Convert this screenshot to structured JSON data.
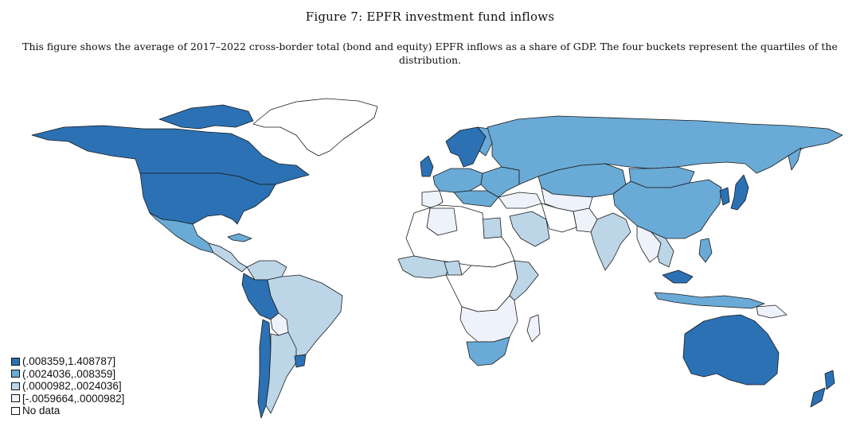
{
  "figure": {
    "title": "Figure 7: EPFR investment fund inflows",
    "caption": "This figure shows the average of 2017–2022 cross-border total (bond and equity) EPFR inflows as a share of GDP. The four buckets represent the quartiles of the distribution."
  },
  "colors": {
    "q4": "#2b71b4",
    "q3": "#6aaad6",
    "q2": "#bcd6e8",
    "q1": "#eef2fb",
    "no_data": "#ffffff",
    "border": "#1a1a1a"
  },
  "legend": {
    "items": [
      {
        "label": "(.008359,1.408787]",
        "color": "#2b71b4"
      },
      {
        "label": "(.0024036,.008359]",
        "color": "#6aaad6"
      },
      {
        "label": "(.0000982,.0024036]",
        "color": "#bcd6e8"
      },
      {
        "label": "[-.0059664,.0000982]",
        "color": "#eef2fb"
      },
      {
        "label": "No data",
        "color": "#ffffff"
      }
    ]
  }
}
